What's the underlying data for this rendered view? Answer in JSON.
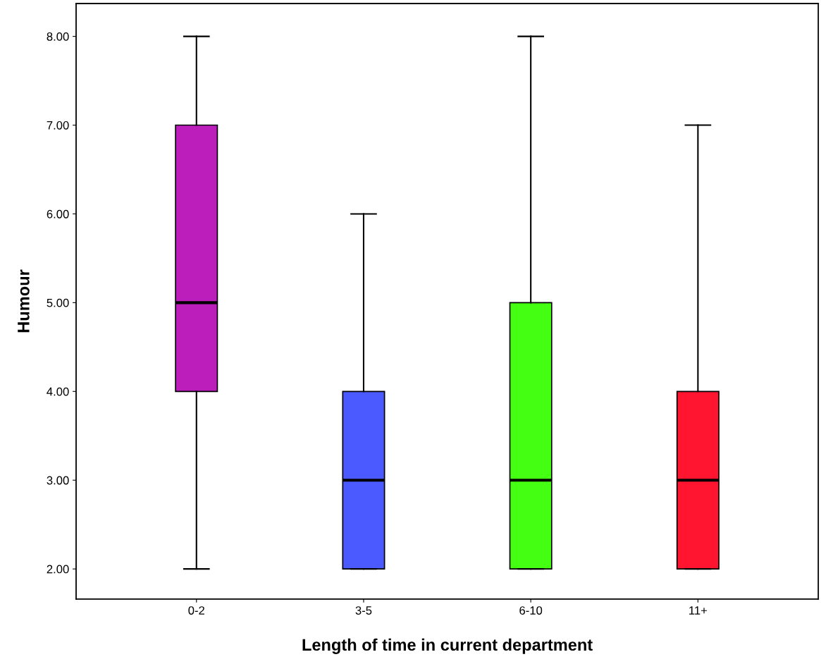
{
  "chart_data": {
    "type": "box",
    "xlabel": "Length of time in current department",
    "ylabel": "Humour",
    "categories": [
      "0-2",
      "3-5",
      "6-10",
      "11+"
    ],
    "boxes": [
      {
        "low": 2,
        "q1": 4,
        "median": 5,
        "q3": 7,
        "high": 8
      },
      {
        "low": 2,
        "q1": 2,
        "median": 3,
        "q3": 4,
        "high": 6
      },
      {
        "low": 2,
        "q1": 2,
        "median": 3,
        "q3": 5,
        "high": 8
      },
      {
        "low": 2,
        "q1": 2,
        "median": 3,
        "q3": 4,
        "high": 7
      }
    ],
    "colors": [
      "#bb1ebb",
      "#4a5aff",
      "#44ff11",
      "#ff1530"
    ],
    "ylim": [
      1.66,
      8.37
    ],
    "yticks": [
      {
        "value": 2,
        "label": "2.00"
      },
      {
        "value": 3,
        "label": "3.00"
      },
      {
        "value": 4,
        "label": "4.00"
      },
      {
        "value": 5,
        "label": "5.00"
      },
      {
        "value": 6,
        "label": "6.00"
      },
      {
        "value": 7,
        "label": "7.00"
      },
      {
        "value": 8,
        "label": "8.00"
      }
    ],
    "grid": false,
    "legend": false
  }
}
